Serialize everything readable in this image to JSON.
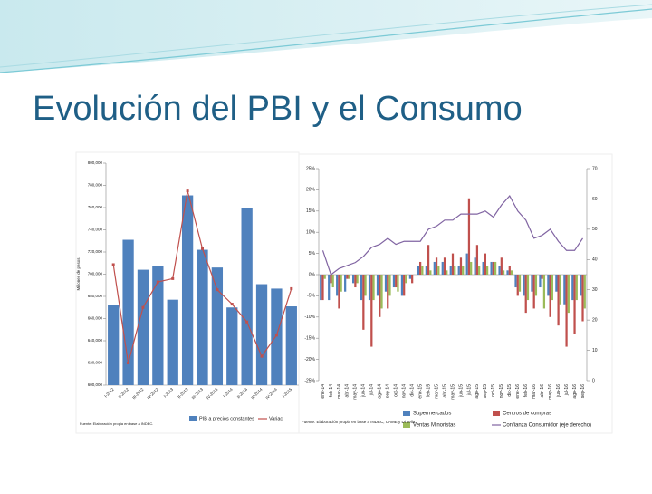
{
  "slide": {
    "title": "Evolución del PBI y el Consumo"
  },
  "chart_data": [
    {
      "type": "bar",
      "y_label": "Millones de pesos",
      "source": "Fuente: Elaboración propia en base a INDEC.",
      "categories": [
        "I-2012",
        "II-2012",
        "III-2012",
        "IV-2012",
        "I-2013",
        "II-2013",
        "III-2013",
        "IV-2013",
        "I-2014",
        "II-2014",
        "III-2014",
        "IV-2014",
        "I-2015"
      ],
      "series": [
        {
          "name": "PIB a precios constantes",
          "color": "#4f81bd",
          "values": [
            672000,
            731000,
            704000,
            707000,
            677000,
            771000,
            722000,
            706000,
            670000,
            760000,
            691000,
            687000,
            671000
          ]
        },
        {
          "name": "Variac",
          "type": "line",
          "color": "#c0504d",
          "values": [
            708600,
            620000,
            670000,
            693000,
            696000,
            775000,
            723000,
            686000,
            673000,
            657000,
            626000,
            645000,
            687000
          ]
        }
      ],
      "ylim": [
        600000,
        800000
      ],
      "yticks": [
        {
          "value": 600000,
          "label": "600,000"
        },
        {
          "value": 620000,
          "label": "620,000"
        },
        {
          "value": 640000,
          "label": "640,000"
        },
        {
          "value": 660000,
          "label": "660,000"
        },
        {
          "value": 680000,
          "label": "680,000"
        },
        {
          "value": 700000,
          "label": "700,000"
        },
        {
          "value": 720000,
          "label": "720,000"
        },
        {
          "value": 740000,
          "label": "740,000"
        },
        {
          "value": 760000,
          "label": "760,000"
        },
        {
          "value": 780000,
          "label": "780,000"
        },
        {
          "value": 800000,
          "label": "800,000"
        }
      ]
    },
    {
      "type": "bar",
      "source": "Fuente: Elaboración propia en base a INDEC, CAME y Di Tella.",
      "categories": [
        "ene-14",
        "feb-14",
        "mar-14",
        "abr-14",
        "may-14",
        "jun-14",
        "jul-14",
        "ago-14",
        "sep-14",
        "oct-14",
        "nov-14",
        "dic-14",
        "ene-15",
        "feb-15",
        "mar-15",
        "abr-15",
        "may-15",
        "jun-15",
        "jul-15",
        "ago-15",
        "sep-15",
        "oct-15",
        "nov-15",
        "dic-15",
        "ene-16",
        "feb-16",
        "mar-16",
        "abr-16",
        "may-16",
        "jun-16",
        "jul-16",
        "ago-16",
        "sep-16"
      ],
      "series": [
        {
          "name": "Supermercados",
          "color": "#4f81bd",
          "values": [
            -6,
            -6,
            -5,
            -4,
            -2,
            -6,
            -6,
            -5,
            -4,
            -3,
            -5,
            -1,
            2,
            2,
            3,
            3,
            2,
            2,
            5,
            4,
            3,
            3,
            2,
            1,
            -3,
            -5,
            -4,
            -3,
            -5,
            -4,
            -7,
            -6,
            -5
          ]
        },
        {
          "name": "Centros de compras",
          "color": "#c0504d",
          "values": [
            -6,
            -2,
            -8,
            -1,
            -3,
            -13,
            -17,
            -10,
            -8,
            -3,
            -5,
            -2,
            3,
            7,
            4,
            4,
            5,
            4,
            18,
            7,
            5,
            3,
            4,
            2,
            -5,
            -9,
            -8,
            -1,
            -10,
            -12,
            -17,
            -14,
            -11
          ]
        },
        {
          "name": "Ventas Minoristas",
          "color": "#9bbb59",
          "values": [
            -1,
            -3,
            -4,
            -1,
            -2,
            -5,
            -6,
            -8,
            -5,
            -4,
            -2,
            0,
            2,
            1,
            2,
            1,
            2,
            2,
            3,
            2,
            2,
            3,
            1,
            1,
            -4,
            -6,
            -5,
            -8,
            -6,
            -7,
            -9,
            -6,
            -8
          ]
        },
        {
          "name": "Confianza Consumidor (eje derecho)",
          "type": "line",
          "axis": "y2",
          "color": "#8064a2",
          "values": [
            43,
            35,
            37,
            38,
            39,
            41,
            44,
            45,
            47,
            45,
            46,
            46,
            46,
            50,
            51,
            53,
            53,
            55,
            55,
            55,
            56,
            54,
            58,
            61,
            56,
            53,
            47,
            48,
            50,
            46,
            43,
            43,
            47
          ]
        }
      ],
      "ylim": [
        -25,
        25
      ],
      "yticks": [
        {
          "value": -25,
          "label": "-25%"
        },
        {
          "value": -20,
          "label": "-20%"
        },
        {
          "value": -15,
          "label": "-15%"
        },
        {
          "value": -10,
          "label": "-10%"
        },
        {
          "value": -5,
          "label": "-5%"
        },
        {
          "value": 0,
          "label": "0%"
        },
        {
          "value": 5,
          "label": "5%"
        },
        {
          "value": 10,
          "label": "10%"
        },
        {
          "value": 15,
          "label": "15%"
        },
        {
          "value": 20,
          "label": "20%"
        },
        {
          "value": 25,
          "label": "25%"
        }
      ],
      "y2lim": [
        0,
        70
      ],
      "y2ticks": [
        0,
        10,
        20,
        30,
        40,
        50,
        60,
        70
      ]
    }
  ]
}
